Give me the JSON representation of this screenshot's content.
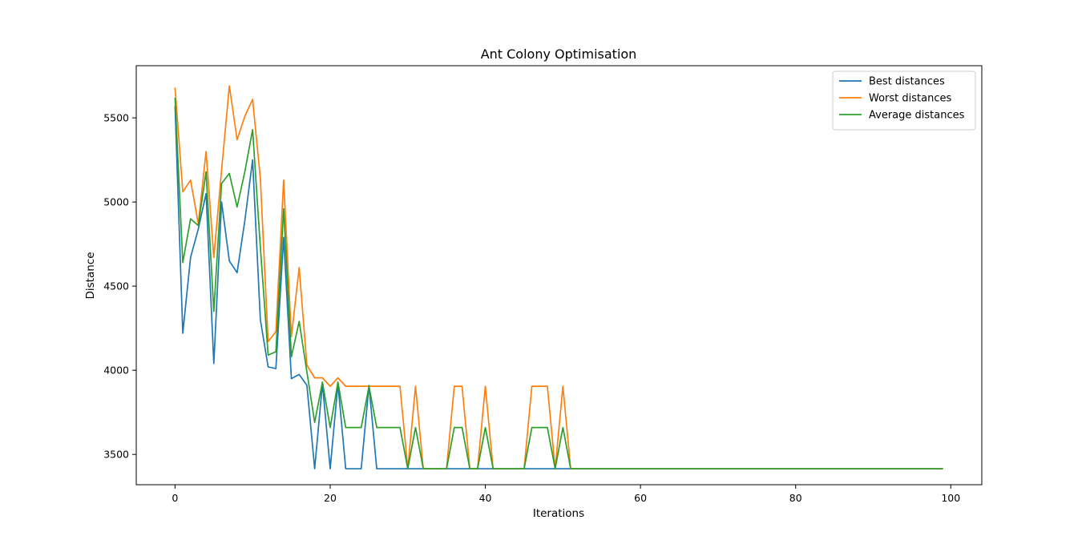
{
  "chart_data": {
    "type": "line",
    "title": "Ant Colony Optimisation",
    "xlabel": "Iterations",
    "ylabel": "Distance",
    "xlim": [
      -5,
      104
    ],
    "ylim": [
      3320,
      5810
    ],
    "xticks": [
      0,
      20,
      40,
      60,
      80,
      100
    ],
    "yticks": [
      3500,
      4000,
      4500,
      5000,
      5500
    ],
    "grid": false,
    "legend_position": "top-right",
    "x": [
      0,
      1,
      2,
      3,
      4,
      5,
      6,
      7,
      8,
      9,
      10,
      11,
      12,
      13,
      14,
      15,
      16,
      17,
      18,
      19,
      20,
      21,
      22,
      23,
      24,
      25,
      26,
      27,
      28,
      29,
      30,
      31,
      32,
      33,
      34,
      35,
      36,
      37,
      38,
      39,
      40,
      41,
      42,
      43,
      44,
      45,
      46,
      47,
      48,
      49,
      50,
      51,
      52,
      53,
      54,
      55,
      56,
      57,
      58,
      59,
      60,
      61,
      62,
      63,
      64,
      65,
      66,
      67,
      68,
      69,
      70,
      71,
      72,
      73,
      74,
      75,
      76,
      77,
      78,
      79,
      80,
      81,
      82,
      83,
      84,
      85,
      86,
      87,
      88,
      89,
      90,
      91,
      92,
      93,
      94,
      95,
      96,
      97,
      98,
      99
    ],
    "series": [
      {
        "name": "Best distances",
        "color": "#1f77b4",
        "values": [
          5570,
          4220,
          4670,
          4840,
          5050,
          4040,
          5000,
          4650,
          4580,
          4890,
          5250,
          4300,
          4020,
          4010,
          4790,
          3950,
          3975,
          3910,
          3415,
          3920,
          3415,
          3920,
          3415,
          3415,
          3415,
          3910,
          3415,
          3415,
          3415,
          3415,
          3415,
          3415,
          3415,
          3415,
          3415,
          3415,
          3415,
          3415,
          3415,
          3415,
          3415,
          3415,
          3415,
          3415,
          3415,
          3415,
          3415,
          3415,
          3415,
          3415,
          3415,
          3415,
          3415,
          3415,
          3415,
          3415,
          3415,
          3415,
          3415,
          3415,
          3415,
          3415,
          3415,
          3415,
          3415,
          3415,
          3415,
          3415,
          3415,
          3415,
          3415,
          3415,
          3415,
          3415,
          3415,
          3415,
          3415,
          3415,
          3415,
          3415,
          3415,
          3415,
          3415,
          3415,
          3415,
          3415,
          3415,
          3415,
          3415,
          3415,
          3415,
          3415,
          3415,
          3415,
          3415,
          3415,
          3415,
          3415,
          3415,
          3415
        ]
      },
      {
        "name": "Worst distances",
        "color": "#ff7f0e",
        "values": [
          5680,
          5060,
          5130,
          4870,
          5300,
          4670,
          5190,
          5690,
          5370,
          5510,
          5610,
          5140,
          4170,
          4230,
          5130,
          4200,
          4610,
          4030,
          3955,
          3955,
          3905,
          3955,
          3905,
          3905,
          3905,
          3905,
          3905,
          3905,
          3905,
          3905,
          3415,
          3905,
          3415,
          3415,
          3415,
          3415,
          3905,
          3905,
          3415,
          3415,
          3905,
          3415,
          3415,
          3415,
          3415,
          3415,
          3905,
          3905,
          3905,
          3415,
          3905,
          3415,
          3415,
          3415,
          3415,
          3415,
          3415,
          3415,
          3415,
          3415,
          3415,
          3415,
          3415,
          3415,
          3415,
          3415,
          3415,
          3415,
          3415,
          3415,
          3415,
          3415,
          3415,
          3415,
          3415,
          3415,
          3415,
          3415,
          3415,
          3415,
          3415,
          3415,
          3415,
          3415,
          3415,
          3415,
          3415,
          3415,
          3415,
          3415,
          3415,
          3415,
          3415,
          3415,
          3415,
          3415,
          3415,
          3415,
          3415,
          3415
        ]
      },
      {
        "name": "Average distances",
        "color": "#2ca02c",
        "values": [
          5620,
          4640,
          4900,
          4860,
          5180,
          4350,
          5110,
          5170,
          4970,
          5180,
          5430,
          4730,
          4090,
          4110,
          4960,
          4080,
          4290,
          3990,
          3690,
          3930,
          3660,
          3930,
          3660,
          3660,
          3660,
          3905,
          3660,
          3660,
          3660,
          3660,
          3415,
          3660,
          3415,
          3415,
          3415,
          3415,
          3660,
          3660,
          3415,
          3415,
          3660,
          3415,
          3415,
          3415,
          3415,
          3415,
          3660,
          3660,
          3660,
          3415,
          3660,
          3415,
          3415,
          3415,
          3415,
          3415,
          3415,
          3415,
          3415,
          3415,
          3415,
          3415,
          3415,
          3415,
          3415,
          3415,
          3415,
          3415,
          3415,
          3415,
          3415,
          3415,
          3415,
          3415,
          3415,
          3415,
          3415,
          3415,
          3415,
          3415,
          3415,
          3415,
          3415,
          3415,
          3415,
          3415,
          3415,
          3415,
          3415,
          3415,
          3415,
          3415,
          3415,
          3415,
          3415,
          3415,
          3415,
          3415,
          3415,
          3415
        ]
      }
    ]
  }
}
